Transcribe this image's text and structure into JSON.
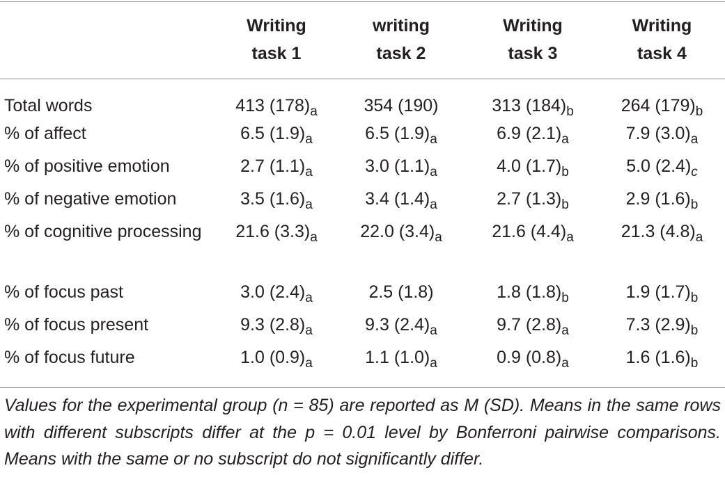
{
  "table": {
    "columns": [
      "",
      "Writing task 1",
      "writing task 2",
      "Writing task 3",
      "Writing task 4"
    ],
    "column_lines": [
      [],
      [
        "Writing",
        "task 1"
      ],
      [
        "writing",
        "task 2"
      ],
      [
        "Writing",
        "task 3"
      ],
      [
        "Writing",
        "task 4"
      ]
    ],
    "rows": [
      {
        "label": "Total words",
        "cells": [
          {
            "value": "413 (178)",
            "sub": "a"
          },
          {
            "value": "354 (190)",
            "sub": ""
          },
          {
            "value": "313 (184)",
            "sub": "b"
          },
          {
            "value": "264 (179)",
            "sub": "b"
          }
        ]
      },
      {
        "label": "% of affect",
        "cells": [
          {
            "value": "6.5 (1.9)",
            "sub": "a"
          },
          {
            "value": "6.5 (1.9)",
            "sub": "a"
          },
          {
            "value": "6.9 (2.1)",
            "sub": "a"
          },
          {
            "value": "7.9 (3.0)",
            "sub": "a"
          }
        ]
      },
      {
        "label": "% of positive emotion",
        "cells": [
          {
            "value": "2.7 (1.1)",
            "sub": "a"
          },
          {
            "value": "3.0 (1.1)",
            "sub": "a"
          },
          {
            "value": "4.0 (1.7)",
            "sub": "b"
          },
          {
            "value": "5.0 (2.4)",
            "sub": "c",
            "sub_italic": true
          }
        ]
      },
      {
        "label": "% of negative emotion",
        "cells": [
          {
            "value": "3.5 (1.6)",
            "sub": "a"
          },
          {
            "value": "3.4 (1.4)",
            "sub": "a"
          },
          {
            "value": "2.7 (1.3)",
            "sub": "b"
          },
          {
            "value": "2.9 (1.6)",
            "sub": "b"
          }
        ]
      },
      {
        "label": "% of cognitive processing",
        "cells": [
          {
            "value": "21.6 (3.3)",
            "sub": "a"
          },
          {
            "value": "22.0 (3.4)",
            "sub": "a"
          },
          {
            "value": "21.6 (4.4)",
            "sub": "a"
          },
          {
            "value": "21.3 (4.8)",
            "sub": "a"
          }
        ]
      },
      {
        "label": "% of focus past",
        "cells": [
          {
            "value": "3.0 (2.4)",
            "sub": "a"
          },
          {
            "value": "2.5 (1.8)",
            "sub": ""
          },
          {
            "value": "1.8 (1.8)",
            "sub": "b"
          },
          {
            "value": "1.9 (1.7)",
            "sub": "b"
          }
        ]
      },
      {
        "label": "% of focus present",
        "cells": [
          {
            "value": "9.3 (2.8)",
            "sub": "a"
          },
          {
            "value": "9.3 (2.4)",
            "sub": "a"
          },
          {
            "value": "9.7 (2.8)",
            "sub": "a"
          },
          {
            "value": "7.3 (2.9)",
            "sub": "b"
          }
        ]
      },
      {
        "label": "% of focus future",
        "cells": [
          {
            "value": "1.0 (0.9)",
            "sub": "a"
          },
          {
            "value": "1.1 (1.0)",
            "sub": "a"
          },
          {
            "value": "0.9 (0.8)",
            "sub": "a"
          },
          {
            "value": "1.6 (1.6)",
            "sub": "b"
          }
        ]
      }
    ]
  },
  "footnote": "Values for the experimental group (n = 85) are reported as M (SD). Means in the same rows with different subscripts differ at the p = 0.01 level by Bonferroni pairwise comparisons. Means with the same or no subscript do not significantly differ."
}
